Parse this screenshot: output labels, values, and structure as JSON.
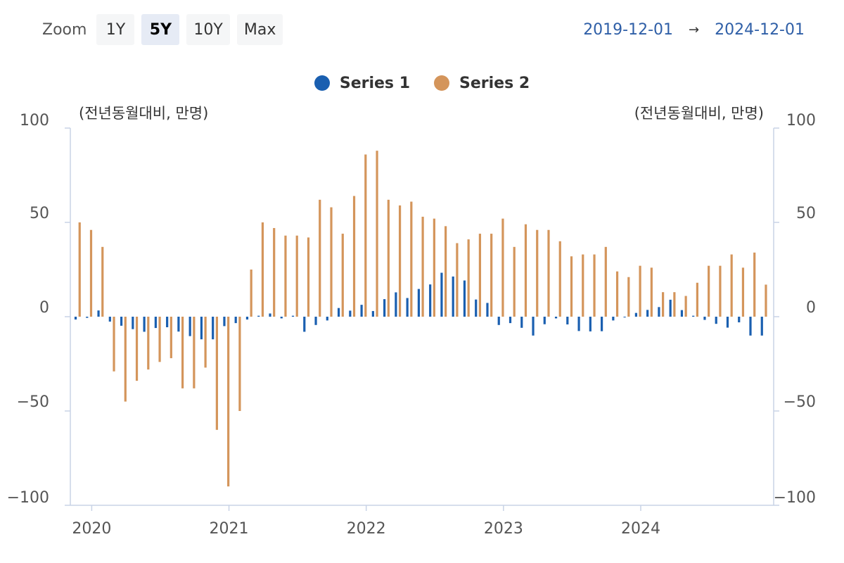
{
  "zoom": {
    "label": "Zoom",
    "options": [
      "1Y",
      "5Y",
      "10Y",
      "Max"
    ],
    "selected": "5Y"
  },
  "range": {
    "from": "2019-12-01",
    "arrow": "→",
    "to": "2024-12-01"
  },
  "colors": {
    "series1": "#1a5fb0",
    "series2": "#d4955b",
    "axis": "#c8d3e6",
    "grid": "#e6e6e6"
  },
  "chart_data": {
    "type": "bar",
    "left_axis_label": "(전년동월대비, 만명)",
    "right_axis_label": "(전년동월대비, 만명)",
    "ylim": [
      -100,
      100
    ],
    "y_ticks": [
      100,
      50,
      0,
      -50,
      -100
    ],
    "y_tick_labels": [
      "100",
      "50",
      "0",
      "−50",
      "−100"
    ],
    "x_tick_labels": [
      "2020",
      "2021",
      "2022",
      "2023",
      "2024"
    ],
    "x_tick_dates": [
      "2020-01",
      "2021-01",
      "2022-01",
      "2023-01",
      "2024-01"
    ],
    "grid": false,
    "legend_position": "top-center",
    "x": [
      "2019-12",
      "2020-01",
      "2020-02",
      "2020-03",
      "2020-04",
      "2020-05",
      "2020-06",
      "2020-07",
      "2020-08",
      "2020-09",
      "2020-10",
      "2020-11",
      "2020-12",
      "2021-01",
      "2021-02",
      "2021-03",
      "2021-04",
      "2021-05",
      "2021-06",
      "2021-07",
      "2021-08",
      "2021-09",
      "2021-10",
      "2021-11",
      "2021-12",
      "2022-01",
      "2022-02",
      "2022-03",
      "2022-04",
      "2022-05",
      "2022-06",
      "2022-07",
      "2022-08",
      "2022-09",
      "2022-10",
      "2022-11",
      "2022-12",
      "2023-01",
      "2023-02",
      "2023-03",
      "2023-04",
      "2023-05",
      "2023-06",
      "2023-07",
      "2023-08",
      "2023-09",
      "2023-10",
      "2023-11",
      "2023-12",
      "2024-01",
      "2024-02",
      "2024-03",
      "2024-04",
      "2024-05",
      "2024-06",
      "2024-07",
      "2024-08",
      "2024-09",
      "2024-10",
      "2024-11",
      "2024-12"
    ],
    "series": [
      {
        "name": "Series 1",
        "values": [
          -1.5,
          -0.6,
          3.3,
          -2.6,
          -4.8,
          -6.6,
          -8.0,
          -6.0,
          -5.6,
          -7.9,
          -10.3,
          -12.0,
          -12.0,
          -5.0,
          -3.4,
          -1.5,
          0.5,
          1.7,
          -0.9,
          0.5,
          -8.0,
          -4.4,
          -2.0,
          4.6,
          3.2,
          6.3,
          3.0,
          9.3,
          12.9,
          9.9,
          14.7,
          17.1,
          23.3,
          21.3,
          19.2,
          9.1,
          7.3,
          -4.4,
          -3.4,
          -5.9,
          -10.0,
          -4.0,
          -0.9,
          -4.1,
          -7.6,
          -7.8,
          -7.7,
          -2.0,
          -0.4,
          2.0,
          3.6,
          5.1,
          9.0,
          3.5,
          0.5,
          -1.7,
          -3.8,
          -5.8,
          -3.0,
          -10.0,
          -10.0
        ]
      },
      {
        "name": "Series 2",
        "values": [
          50,
          46,
          37,
          -29,
          -45,
          -34,
          -28,
          -24,
          -22,
          -38,
          -38,
          -27,
          -60,
          -90,
          -50,
          25,
          50,
          47,
          43,
          43,
          42,
          62,
          58,
          44,
          64,
          86,
          88,
          62,
          59,
          61,
          53,
          52,
          48,
          39,
          41,
          44,
          44,
          52,
          37,
          49,
          46,
          46,
          40,
          32,
          33,
          33,
          37,
          24,
          21,
          27,
          26,
          13,
          13,
          11,
          18,
          27,
          27,
          33,
          26,
          34,
          17
        ]
      }
    ]
  }
}
